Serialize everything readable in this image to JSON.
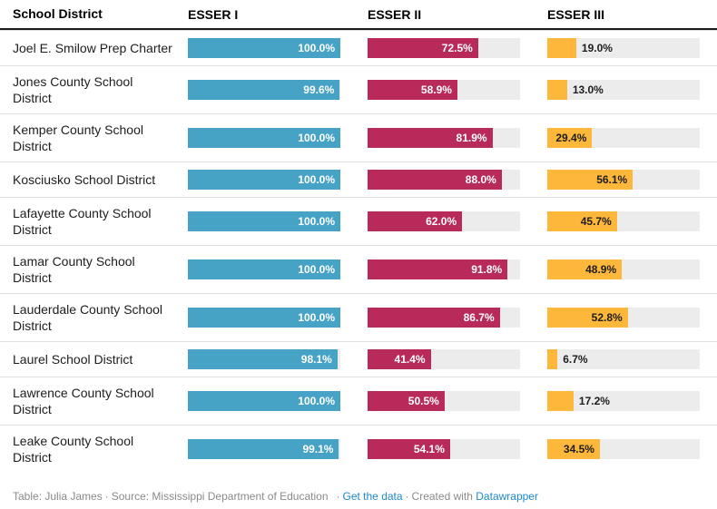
{
  "table": {
    "columns": [
      "School District",
      "ESSER I",
      "ESSER II",
      "ESSER III"
    ]
  },
  "colors": {
    "esser1": "#47a3c6",
    "esser2": "#b72a59",
    "esser3": "#fdb73a",
    "track": "#ececec",
    "header_border": "#1a1a1a",
    "row_border": "#e0e0e0",
    "text": "#1d1d1d",
    "footer_text": "#8a8a8a",
    "link": "#1e88c8",
    "label_light": "#ffffff",
    "label_dark": "#1d1d1d"
  },
  "rows": [
    {
      "district": "Joel E. Smilow Prep Charter",
      "esser1": {
        "value": 100.0,
        "label": "100.0%",
        "inside": true
      },
      "esser2": {
        "value": 72.5,
        "label": "72.5%",
        "inside": true
      },
      "esser3": {
        "value": 19.0,
        "label": "19.0%",
        "inside": false
      }
    },
    {
      "district": "Jones County School District",
      "esser1": {
        "value": 99.6,
        "label": "99.6%",
        "inside": true
      },
      "esser2": {
        "value": 58.9,
        "label": "58.9%",
        "inside": true
      },
      "esser3": {
        "value": 13.0,
        "label": "13.0%",
        "inside": false
      }
    },
    {
      "district": "Kemper County School District",
      "esser1": {
        "value": 100.0,
        "label": "100.0%",
        "inside": true
      },
      "esser2": {
        "value": 81.9,
        "label": "81.9%",
        "inside": true
      },
      "esser3": {
        "value": 29.4,
        "label": "29.4%",
        "inside": true
      }
    },
    {
      "district": "Kosciusko School District",
      "esser1": {
        "value": 100.0,
        "label": "100.0%",
        "inside": true
      },
      "esser2": {
        "value": 88.0,
        "label": "88.0%",
        "inside": true
      },
      "esser3": {
        "value": 56.1,
        "label": "56.1%",
        "inside": true
      }
    },
    {
      "district": "Lafayette County School District",
      "esser1": {
        "value": 100.0,
        "label": "100.0%",
        "inside": true
      },
      "esser2": {
        "value": 62.0,
        "label": "62.0%",
        "inside": true
      },
      "esser3": {
        "value": 45.7,
        "label": "45.7%",
        "inside": true
      }
    },
    {
      "district": "Lamar County School District",
      "esser1": {
        "value": 100.0,
        "label": "100.0%",
        "inside": true
      },
      "esser2": {
        "value": 91.8,
        "label": "91.8%",
        "inside": true
      },
      "esser3": {
        "value": 48.9,
        "label": "48.9%",
        "inside": true
      }
    },
    {
      "district": "Lauderdale County School District",
      "esser1": {
        "value": 100.0,
        "label": "100.0%",
        "inside": true
      },
      "esser2": {
        "value": 86.7,
        "label": "86.7%",
        "inside": true
      },
      "esser3": {
        "value": 52.8,
        "label": "52.8%",
        "inside": true
      }
    },
    {
      "district": "Laurel School District",
      "esser1": {
        "value": 98.1,
        "label": "98.1%",
        "inside": true
      },
      "esser2": {
        "value": 41.4,
        "label": "41.4%",
        "inside": true
      },
      "esser3": {
        "value": 6.7,
        "label": "6.7%",
        "inside": false
      }
    },
    {
      "district": "Lawrence County School District",
      "esser1": {
        "value": 100.0,
        "label": "100.0%",
        "inside": true
      },
      "esser2": {
        "value": 50.5,
        "label": "50.5%",
        "inside": true
      },
      "esser3": {
        "value": 17.2,
        "label": "17.2%",
        "inside": false
      }
    },
    {
      "district": "Leake County School District",
      "esser1": {
        "value": 99.1,
        "label": "99.1%",
        "inside": true
      },
      "esser2": {
        "value": 54.1,
        "label": "54.1%",
        "inside": true
      },
      "esser3": {
        "value": 34.5,
        "label": "34.5%",
        "inside": true
      }
    }
  ],
  "footer": {
    "credit": "Table: Julia James",
    "sep": "·",
    "source": "Source: Mississippi Department of Education",
    "get_data": "Get the data",
    "created_with": "Created with",
    "datawrapper": "Datawrapper"
  },
  "chart_data": {
    "type": "bar",
    "title": "",
    "xlabel": "",
    "ylabel": "",
    "xlim": [
      0,
      100
    ],
    "value_format": "percent",
    "grid": false,
    "legend_position": "column-headers",
    "categories": [
      "Joel E. Smilow Prep Charter",
      "Jones County School District",
      "Kemper County School District",
      "Kosciusko School District",
      "Lafayette County School District",
      "Lamar County School District",
      "Lauderdale County School District",
      "Laurel School District",
      "Lawrence County School District",
      "Leake County School District"
    ],
    "series": [
      {
        "name": "ESSER I",
        "color": "#47a3c6",
        "values": [
          100.0,
          99.6,
          100.0,
          100.0,
          100.0,
          100.0,
          100.0,
          98.1,
          100.0,
          99.1
        ]
      },
      {
        "name": "ESSER II",
        "color": "#b72a59",
        "values": [
          72.5,
          58.9,
          81.9,
          88.0,
          62.0,
          91.8,
          86.7,
          41.4,
          50.5,
          54.1
        ]
      },
      {
        "name": "ESSER III",
        "color": "#fdb73a",
        "values": [
          19.0,
          13.0,
          29.4,
          56.1,
          45.7,
          48.9,
          52.8,
          6.7,
          17.2,
          34.5
        ]
      }
    ]
  }
}
